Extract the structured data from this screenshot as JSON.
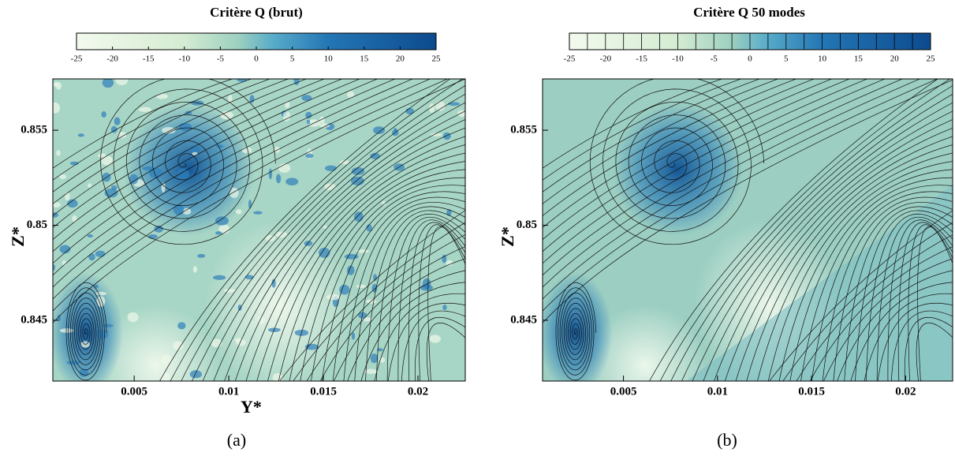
{
  "chart_data": [
    {
      "type": "contour",
      "title": "Critère Q (brut)",
      "colorbar_style": "continuous",
      "clim": [
        -25,
        25
      ],
      "cticks": [
        -25,
        -20,
        -15,
        -10,
        -5,
        0,
        5,
        10,
        15,
        20,
        25
      ],
      "xlim": [
        0.0007,
        0.0225
      ],
      "xticks": [
        0.005,
        0.01,
        0.015,
        0.02
      ],
      "ylim": [
        0.8418,
        0.8577
      ],
      "yticks": [
        0.845,
        0.85,
        0.855
      ],
      "xlabel": "Y*",
      "ylabel": "Z*",
      "caption": "(a)"
    },
    {
      "type": "contour",
      "title": "Critère Q 50 modes",
      "colorbar_style": "discrete",
      "clim": [
        -25,
        25
      ],
      "cticks": [
        -25,
        -20,
        -15,
        -10,
        -5,
        0,
        5,
        10,
        15,
        20,
        25
      ],
      "xlim": [
        0.0007,
        0.0225
      ],
      "xticks": [
        0.005,
        0.01,
        0.015,
        0.02
      ],
      "ylim": [
        0.8418,
        0.8577
      ],
      "yticks": [
        0.845,
        0.85,
        0.855
      ],
      "ylabel": "Z*",
      "caption": "(b)"
    }
  ]
}
